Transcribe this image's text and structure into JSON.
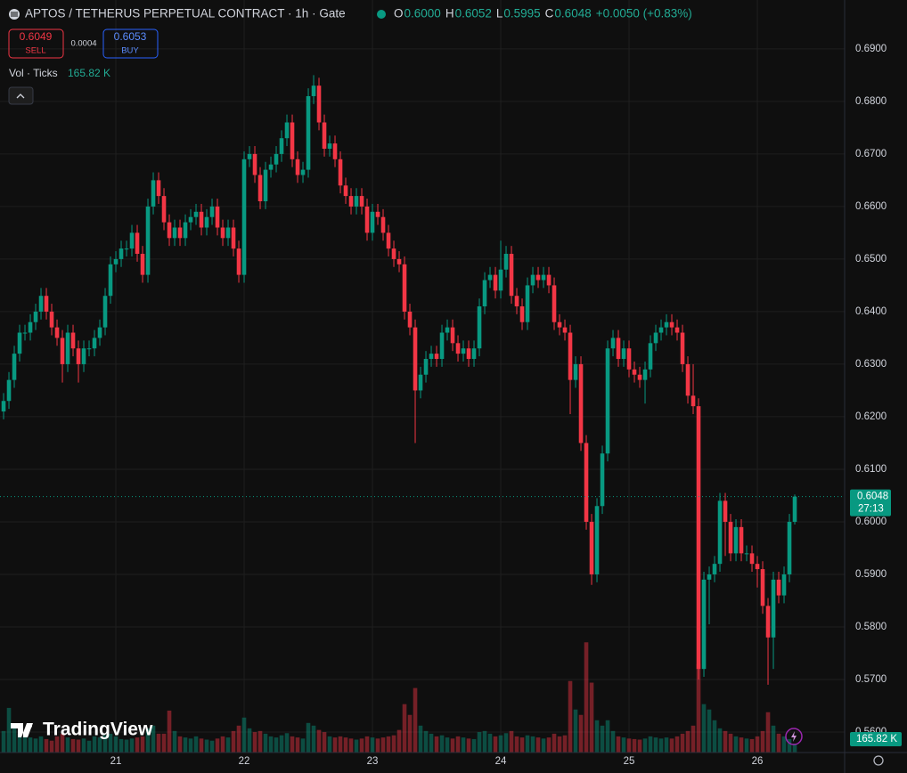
{
  "header": {
    "symbol": "APTOS / TETHERUS PERPETUAL CONTRACT · 1h · Gate",
    "ohlc": [
      {
        "label": "O",
        "value": "0.6000"
      },
      {
        "label": "H",
        "value": "0.6052"
      },
      {
        "label": "L",
        "value": "0.5995"
      },
      {
        "label": "C",
        "value": "0.6048"
      }
    ],
    "change": "+0.0050 (+0.83%)",
    "sell": {
      "price": "0.6049",
      "label": "SELL"
    },
    "spread": "0.0004",
    "buy": {
      "price": "0.6053",
      "label": "BUY"
    },
    "volume_legend": {
      "label": "Vol · Ticks",
      "value": "165.82 K"
    }
  },
  "watermark": "TradingView",
  "chart_data": {
    "type": "candlestick",
    "up_color": "#089981",
    "down_color": "#f23645",
    "grid": true,
    "ylim": [
      0.5561,
      0.6993
    ],
    "xlim": [
      -0.67,
      157.33
    ],
    "yticks": [
      {
        "value": 0.56,
        "label": "0.5600"
      },
      {
        "value": 0.57,
        "label": "0.5700"
      },
      {
        "value": 0.58,
        "label": "0.5800"
      },
      {
        "value": 0.59,
        "label": "0.5900"
      },
      {
        "value": 0.6,
        "label": "0.6000"
      },
      {
        "value": 0.61,
        "label": "0.6100"
      },
      {
        "value": 0.62,
        "label": "0.6200"
      },
      {
        "value": 0.63,
        "label": "0.6300"
      },
      {
        "value": 0.64,
        "label": "0.6400"
      },
      {
        "value": 0.65,
        "label": "0.6500"
      },
      {
        "value": 0.66,
        "label": "0.6600"
      },
      {
        "value": 0.67,
        "label": "0.6700"
      },
      {
        "value": 0.68,
        "label": "0.6800"
      },
      {
        "value": 0.69,
        "label": "0.6900"
      }
    ],
    "xticks": [
      {
        "value": 21,
        "label": "21"
      },
      {
        "value": 45,
        "label": "22"
      },
      {
        "value": 69,
        "label": "23"
      },
      {
        "value": 93,
        "label": "24"
      },
      {
        "value": 117,
        "label": "25"
      },
      {
        "value": 141,
        "label": "26"
      }
    ],
    "last_price": 0.6048,
    "countdown": "27:13",
    "open": [
      0.621,
      0.623,
      0.627,
      0.632,
      0.636,
      0.636,
      0.638,
      0.64,
      0.643,
      0.64,
      0.637,
      0.635,
      0.63,
      0.636,
      0.633,
      0.63,
      0.633,
      0.633,
      0.635,
      0.637,
      0.643,
      0.649,
      0.65,
      0.652,
      0.652,
      0.655,
      0.651,
      0.647,
      0.66,
      0.665,
      0.662,
      0.657,
      0.654,
      0.656,
      0.654,
      0.657,
      0.658,
      0.659,
      0.656,
      0.658,
      0.66,
      0.656,
      0.654,
      0.656,
      0.652,
      0.647,
      0.669,
      0.67,
      0.666,
      0.661,
      0.667,
      0.668,
      0.67,
      0.673,
      0.676,
      0.669,
      0.666,
      0.667,
      0.681,
      0.683,
      0.676,
      0.671,
      0.672,
      0.669,
      0.664,
      0.662,
      0.66,
      0.662,
      0.66,
      0.655,
      0.659,
      0.658,
      0.655,
      0.652,
      0.65,
      0.649,
      0.64,
      0.637,
      0.625,
      0.628,
      0.631,
      0.632,
      0.631,
      0.636,
      0.637,
      0.634,
      0.632,
      0.633,
      0.631,
      0.633,
      0.641,
      0.646,
      0.647,
      0.644,
      0.648,
      0.651,
      0.643,
      0.641,
      0.638,
      0.645,
      0.647,
      0.646,
      0.647,
      0.645,
      0.638,
      0.637,
      0.636,
      0.627,
      0.63,
      0.615,
      0.6,
      0.59,
      0.603,
      0.613,
      0.633,
      0.635,
      0.631,
      0.633,
      0.629,
      0.628,
      0.627,
      0.629,
      0.634,
      0.636,
      0.637,
      0.638,
      0.637,
      0.636,
      0.63,
      0.624,
      0.622,
      0.572,
      0.589,
      0.59,
      0.592,
      0.604,
      0.6,
      0.594,
      0.599,
      0.594,
      0.594,
      0.592,
      0.591,
      0.584,
      0.578,
      0.589,
      0.586,
      0.59,
      0.6
    ],
    "high": [
      0.6245,
      0.6285,
      0.6335,
      0.6375,
      0.6375,
      0.6395,
      0.6415,
      0.6445,
      0.6445,
      0.6415,
      0.6385,
      0.6365,
      0.6375,
      0.6375,
      0.6345,
      0.6345,
      0.6345,
      0.6365,
      0.6385,
      0.6445,
      0.6505,
      0.6515,
      0.6535,
      0.6535,
      0.6565,
      0.6565,
      0.6525,
      0.6615,
      0.6665,
      0.6665,
      0.6635,
      0.6585,
      0.6575,
      0.6575,
      0.6585,
      0.6595,
      0.6605,
      0.6605,
      0.6595,
      0.6615,
      0.6615,
      0.6575,
      0.6575,
      0.6575,
      0.6535,
      0.6705,
      0.6715,
      0.6715,
      0.6675,
      0.6685,
      0.6695,
      0.6715,
      0.6745,
      0.6775,
      0.6775,
      0.6705,
      0.6685,
      0.6825,
      0.685,
      0.6845,
      0.6775,
      0.6735,
      0.6735,
      0.6705,
      0.6655,
      0.6635,
      0.6635,
      0.6635,
      0.6615,
      0.6605,
      0.6605,
      0.6595,
      0.6565,
      0.6535,
      0.6515,
      0.6505,
      0.6415,
      0.6385,
      0.6295,
      0.6325,
      0.6335,
      0.6335,
      0.6375,
      0.6385,
      0.6385,
      0.6355,
      0.6345,
      0.6345,
      0.6345,
      0.6425,
      0.6475,
      0.6485,
      0.6485,
      0.6535,
      0.6525,
      0.6525,
      0.6445,
      0.6425,
      0.6465,
      0.6485,
      0.6485,
      0.6485,
      0.6485,
      0.6465,
      0.6395,
      0.6385,
      0.6375,
      0.6315,
      0.6315,
      0.6165,
      0.6015,
      0.6045,
      0.6145,
      0.6345,
      0.6365,
      0.6365,
      0.6345,
      0.6345,
      0.6305,
      0.6295,
      0.6305,
      0.6355,
      0.6375,
      0.6385,
      0.6395,
      0.6395,
      0.6385,
      0.6375,
      0.6315,
      0.63,
      0.6235,
      0.5905,
      0.5915,
      0.5935,
      0.6055,
      0.6055,
      0.6015,
      0.6005,
      0.6005,
      0.5955,
      0.5955,
      0.5935,
      0.5925,
      0.5855,
      0.5905,
      0.5905,
      0.5915,
      0.6015,
      0.6052
    ],
    "low": [
      0.6195,
      0.6215,
      0.6255,
      0.6305,
      0.6345,
      0.6345,
      0.6365,
      0.6385,
      0.6385,
      0.6355,
      0.6335,
      0.6265,
      0.6285,
      0.6315,
      0.6265,
      0.6285,
      0.6315,
      0.6315,
      0.6335,
      0.6355,
      0.6415,
      0.6475,
      0.6485,
      0.6505,
      0.6505,
      0.6495,
      0.6455,
      0.6455,
      0.6585,
      0.6605,
      0.6555,
      0.6525,
      0.6525,
      0.6525,
      0.6525,
      0.6555,
      0.6565,
      0.6545,
      0.6545,
      0.6565,
      0.6545,
      0.6525,
      0.6525,
      0.6505,
      0.6455,
      0.6455,
      0.6675,
      0.6645,
      0.6595,
      0.6595,
      0.6655,
      0.6665,
      0.6685,
      0.6715,
      0.6675,
      0.6645,
      0.6645,
      0.6655,
      0.6795,
      0.6745,
      0.6695,
      0.6695,
      0.6675,
      0.6625,
      0.6605,
      0.6585,
      0.6585,
      0.6585,
      0.6535,
      0.6535,
      0.6565,
      0.6535,
      0.6505,
      0.6485,
      0.6475,
      0.6385,
      0.6355,
      0.615,
      0.6235,
      0.6265,
      0.6295,
      0.6295,
      0.6295,
      0.6345,
      0.6325,
      0.6305,
      0.6305,
      0.6295,
      0.6295,
      0.6315,
      0.6395,
      0.6445,
      0.6425,
      0.6425,
      0.6465,
      0.6415,
      0.6395,
      0.6365,
      0.6365,
      0.6435,
      0.6445,
      0.6445,
      0.6435,
      0.6365,
      0.6355,
      0.6345,
      0.6205,
      0.6255,
      0.6135,
      0.5985,
      0.588,
      0.5885,
      0.6015,
      0.6115,
      0.6315,
      0.6295,
      0.6295,
      0.6275,
      0.6265,
      0.6255,
      0.6225,
      0.6275,
      0.6325,
      0.6345,
      0.6355,
      0.6355,
      0.6345,
      0.6285,
      0.6225,
      0.6205,
      0.57,
      0.5705,
      0.5805,
      0.5885,
      0.5905,
      0.5935,
      0.5925,
      0.5925,
      0.5925,
      0.5925,
      0.5905,
      0.5875,
      0.5825,
      0.569,
      0.572,
      0.5845,
      0.5845,
      0.5885,
      0.5995
    ],
    "close": [
      0.623,
      0.627,
      0.632,
      0.636,
      0.636,
      0.638,
      0.64,
      0.643,
      0.64,
      0.637,
      0.635,
      0.63,
      0.636,
      0.633,
      0.63,
      0.633,
      0.633,
      0.635,
      0.637,
      0.643,
      0.649,
      0.65,
      0.652,
      0.652,
      0.655,
      0.651,
      0.647,
      0.66,
      0.665,
      0.662,
      0.657,
      0.654,
      0.656,
      0.654,
      0.657,
      0.658,
      0.659,
      0.656,
      0.658,
      0.66,
      0.656,
      0.654,
      0.656,
      0.652,
      0.647,
      0.669,
      0.67,
      0.666,
      0.661,
      0.667,
      0.668,
      0.67,
      0.673,
      0.676,
      0.669,
      0.666,
      0.667,
      0.681,
      0.683,
      0.676,
      0.671,
      0.672,
      0.669,
      0.664,
      0.662,
      0.66,
      0.662,
      0.66,
      0.655,
      0.659,
      0.658,
      0.655,
      0.652,
      0.65,
      0.649,
      0.64,
      0.637,
      0.625,
      0.628,
      0.631,
      0.632,
      0.631,
      0.636,
      0.637,
      0.634,
      0.632,
      0.633,
      0.631,
      0.633,
      0.641,
      0.646,
      0.647,
      0.644,
      0.648,
      0.651,
      0.643,
      0.641,
      0.638,
      0.645,
      0.647,
      0.646,
      0.647,
      0.645,
      0.638,
      0.637,
      0.636,
      0.627,
      0.63,
      0.615,
      0.6,
      0.59,
      0.603,
      0.613,
      0.633,
      0.635,
      0.631,
      0.633,
      0.629,
      0.628,
      0.627,
      0.629,
      0.634,
      0.636,
      0.637,
      0.638,
      0.637,
      0.636,
      0.63,
      0.624,
      0.622,
      0.572,
      0.589,
      0.59,
      0.592,
      0.604,
      0.6,
      0.594,
      0.599,
      0.594,
      0.594,
      0.592,
      0.591,
      0.584,
      0.578,
      0.589,
      0.586,
      0.59,
      0.6,
      0.6048
    ],
    "volume_ylim": [
      0,
      14000
    ],
    "volume": [
      400,
      830,
      500,
      350,
      300,
      280,
      260,
      300,
      250,
      220,
      300,
      350,
      280,
      250,
      240,
      260,
      220,
      300,
      280,
      320,
      350,
      300,
      250,
      240,
      260,
      280,
      300,
      450,
      500,
      350,
      350,
      780,
      400,
      300,
      280,
      260,
      300,
      260,
      240,
      220,
      260,
      300,
      280,
      400,
      500,
      650,
      450,
      380,
      400,
      350,
      300,
      280,
      320,
      360,
      300,
      280,
      260,
      550,
      500,
      420,
      380,
      300,
      280,
      300,
      280,
      260,
      240,
      260,
      300,
      280,
      260,
      280,
      300,
      320,
      420,
      900,
      700,
      1200,
      500,
      400,
      350,
      300,
      320,
      280,
      260,
      300,
      280,
      260,
      250,
      380,
      400,
      350,
      300,
      320,
      360,
      400,
      300,
      280,
      320,
      300,
      280,
      260,
      280,
      350,
      300,
      320,
      1330,
      800,
      700,
      2050,
      1300,
      600,
      500,
      600,
      400,
      300,
      280,
      260,
      250,
      240,
      260,
      300,
      280,
      260,
      280,
      260,
      300,
      350,
      400,
      500,
      1650,
      900,
      800,
      600,
      450,
      400,
      350,
      300,
      280,
      260,
      250,
      300,
      400,
      750,
      500,
      350,
      300,
      250,
      165.82
    ]
  }
}
